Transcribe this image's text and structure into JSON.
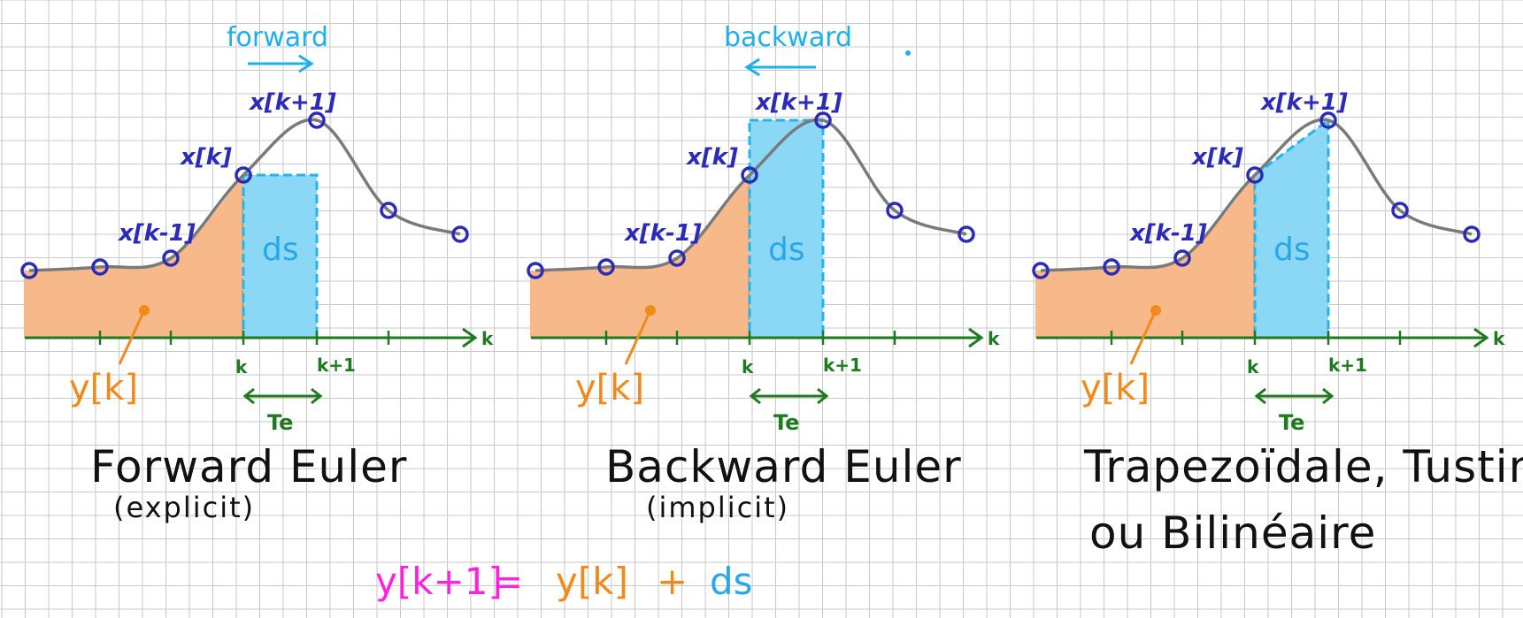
{
  "colors": {
    "grid": "#c9c9c9",
    "curve": "#7a7a7a",
    "point": "#2b2bb8",
    "axis": "#1f7a1f",
    "area_y": "#f7b989",
    "area_ds": "#8ad8f5",
    "ds_border": "#25b3ec",
    "y_label": "#f08a1a",
    "ds_label": "#29a8e8",
    "formula_y_next": "#ff22dd"
  },
  "panels": [
    {
      "direction_label": "forward",
      "direction_arrow": "right",
      "method": "forward",
      "labels": {
        "x_prev": "x[k-1]",
        "x_k": "x[k]",
        "x_next": "x[k+1]",
        "k": "k",
        "k_next": "k+1",
        "axis": "k",
        "te": "Te",
        "y": "y[k]",
        "ds": "ds"
      },
      "title": "Forward Euler",
      "subtitle": "(explicit)"
    },
    {
      "direction_label": "backward",
      "direction_arrow": "left",
      "method": "backward",
      "labels": {
        "x_prev": "x[k-1]",
        "x_k": "x[k]",
        "x_next": "x[k+1]",
        "k": "k",
        "k_next": "k+1",
        "axis": "k",
        "te": "Te",
        "y": "y[k]",
        "ds": "ds"
      },
      "title": "Backward Euler",
      "subtitle": "(implicit)"
    },
    {
      "direction_label": "",
      "direction_arrow": "none",
      "method": "trapezoidal",
      "labels": {
        "x_prev": "x[k-1]",
        "x_k": "x[k]",
        "x_next": "x[k+1]",
        "k": "k",
        "k_next": "k+1",
        "axis": "k",
        "te": "Te",
        "y": "y[k]",
        "ds": "ds"
      },
      "title": "Trapezoïdale, Tustin,",
      "subtitle": "ou  Bilinéaire"
    }
  ],
  "formula": {
    "lhs": "y[k+1]",
    "equals": "=",
    "term1": "y[k]",
    "plus": "+",
    "term2": "ds"
  }
}
